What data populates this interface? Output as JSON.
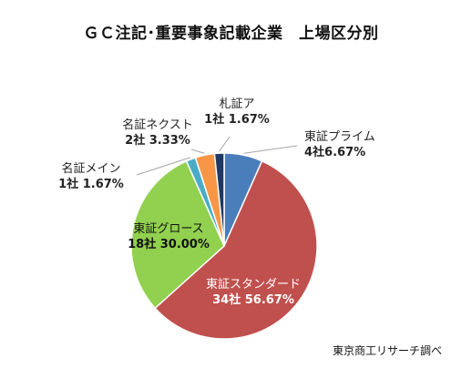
{
  "chart_data": {
    "type": "pie",
    "title": "ＧＣ注記･重要事象記載企業　上場区分別",
    "slices": [
      {
        "name": "東証プライム",
        "count_label": "4社6.67%",
        "value": 4,
        "percent": 6.67,
        "color": "#4a7ebb"
      },
      {
        "name": "東証スタンダード",
        "count_label": "34社 56.67%",
        "value": 34,
        "percent": 56.67,
        "color": "#c0504d"
      },
      {
        "name": "東証グロース",
        "count_label": "18社 30.00%",
        "value": 18,
        "percent": 30.0,
        "color": "#92d050"
      },
      {
        "name": "名証メイン",
        "count_label": "1社 1.67%",
        "value": 1,
        "percent": 1.67,
        "color": "#4bacc6"
      },
      {
        "name": "名証ネクスト",
        "count_label": "2社 3.33%",
        "value": 2,
        "percent": 3.33,
        "color": "#f79646"
      },
      {
        "name": "札証ア",
        "count_label": "1社 1.67%",
        "value": 1,
        "percent": 1.67,
        "color": "#1f3864"
      }
    ],
    "source": "東京商工リサーチ調べ"
  }
}
